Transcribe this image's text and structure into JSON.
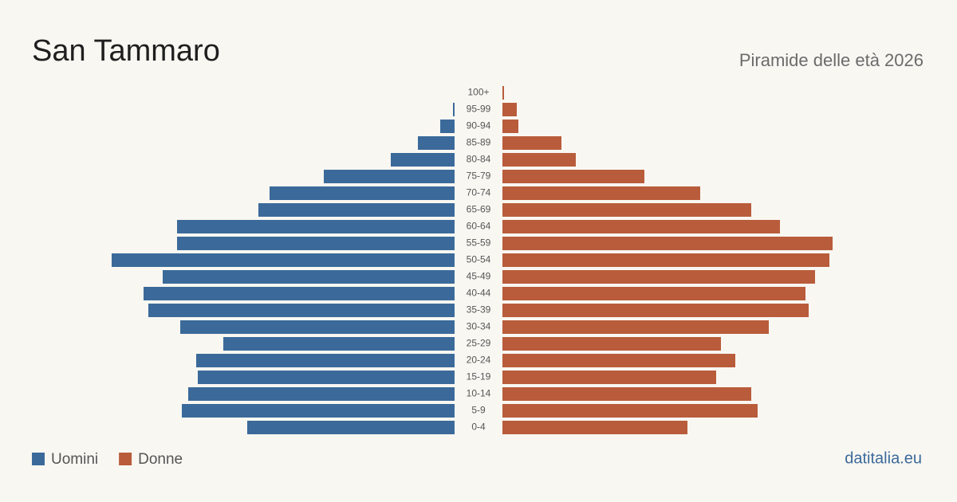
{
  "chart_data": {
    "type": "pyramid",
    "title": "San Tammaro",
    "subtitle": "Piramide delle età 2026",
    "source": "datitalia.eu",
    "categories": [
      "100+",
      "95-99",
      "90-94",
      "85-89",
      "80-84",
      "75-79",
      "70-74",
      "65-69",
      "60-64",
      "55-59",
      "50-54",
      "45-49",
      "40-44",
      "35-39",
      "30-34",
      "25-29",
      "20-24",
      "15-19",
      "10-14",
      "5-9",
      "0-4"
    ],
    "series": [
      {
        "name": "Uomini",
        "color": "#3b6a9a",
        "values": [
          0,
          1,
          9,
          23,
          40,
          82,
          116,
          123,
          174,
          174,
          215,
          183,
          195,
          192,
          172,
          145,
          162,
          161,
          167,
          171,
          130
        ]
      },
      {
        "name": "Donne",
        "color": "#b95c3b",
        "values": [
          1,
          9,
          10,
          37,
          46,
          89,
          124,
          156,
          174,
          207,
          205,
          196,
          190,
          192,
          167,
          137,
          146,
          134,
          156,
          160,
          116
        ]
      }
    ]
  }
}
